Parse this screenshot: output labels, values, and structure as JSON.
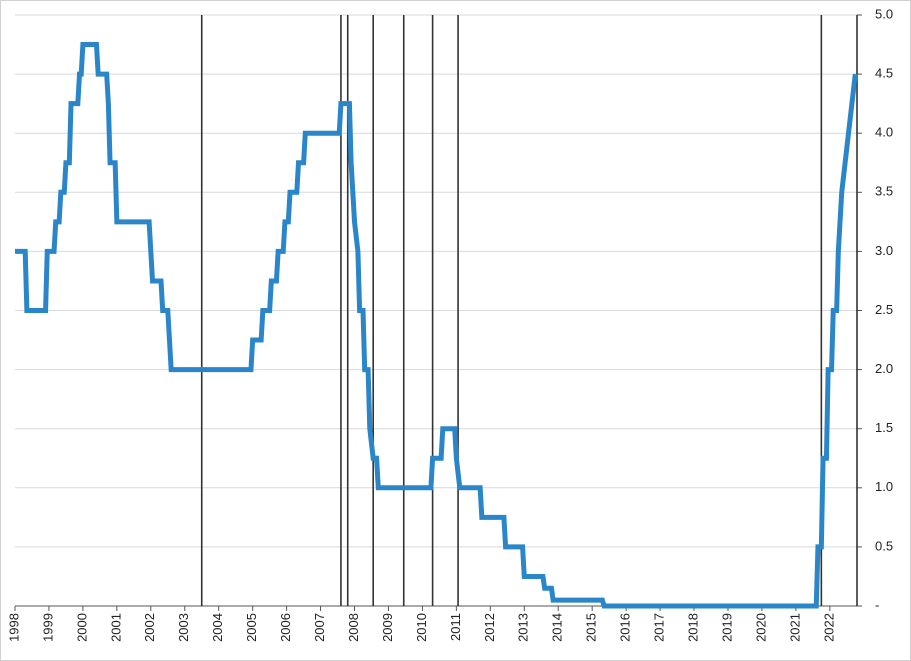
{
  "chart_data": {
    "type": "line",
    "x": [
      1998.0,
      1998.3,
      1998.35,
      1998.9,
      1998.95,
      1999.15,
      1999.2,
      1999.3,
      1999.35,
      1999.45,
      1999.5,
      1999.6,
      1999.65,
      1999.85,
      1999.9,
      1999.95,
      2000.0,
      2000.4,
      2000.45,
      2000.7,
      2000.75,
      2000.8,
      2000.95,
      2001.0,
      2001.95,
      2002.05,
      2002.3,
      2002.35,
      2002.5,
      2002.6,
      2004.95,
      2005.0,
      2005.25,
      2005.3,
      2005.5,
      2005.55,
      2005.7,
      2005.75,
      2005.9,
      2005.95,
      2006.05,
      2006.1,
      2006.3,
      2006.35,
      2006.5,
      2006.55,
      2007.55,
      2007.6,
      2007.85,
      2007.9,
      2008.0,
      2008.1,
      2008.15,
      2008.25,
      2008.3,
      2008.4,
      2008.45,
      2008.55,
      2008.65,
      2008.7,
      2010.25,
      2010.3,
      2010.55,
      2010.6,
      2010.95,
      2011.0,
      2011.1,
      2011.7,
      2011.75,
      2012.4,
      2012.45,
      2012.95,
      2013.0,
      2013.55,
      2013.6,
      2013.8,
      2013.85,
      2015.3,
      2015.35,
      2021.6,
      2021.65,
      2021.75,
      2021.8,
      2021.9,
      2021.95,
      2022.05,
      2022.1,
      2022.2,
      2022.25,
      2022.3,
      2022.35,
      2022.45,
      2022.55,
      2022.65,
      2022.75
    ],
    "values": [
      3.0,
      3.0,
      2.5,
      2.5,
      3.0,
      3.0,
      3.25,
      3.25,
      3.5,
      3.5,
      3.75,
      3.75,
      4.25,
      4.25,
      4.5,
      4.5,
      4.75,
      4.75,
      4.5,
      4.5,
      4.25,
      3.75,
      3.75,
      3.25,
      3.25,
      2.75,
      2.75,
      2.5,
      2.5,
      2.0,
      2.0,
      2.25,
      2.25,
      2.5,
      2.5,
      2.75,
      2.75,
      3.0,
      3.0,
      3.25,
      3.25,
      3.5,
      3.5,
      3.75,
      3.75,
      4.0,
      4.0,
      4.25,
      4.25,
      3.75,
      3.25,
      3.0,
      2.5,
      2.5,
      2.0,
      2.0,
      1.5,
      1.25,
      1.25,
      1.0,
      1.0,
      1.25,
      1.25,
      1.5,
      1.5,
      1.25,
      1.0,
      1.0,
      0.75,
      0.75,
      0.5,
      0.5,
      0.25,
      0.25,
      0.15,
      0.15,
      0.05,
      0.05,
      0.0,
      0.0,
      0.5,
      0.5,
      1.25,
      1.25,
      2.0,
      2.0,
      2.5,
      2.5,
      3.0,
      3.25,
      3.5,
      3.75,
      4.0,
      4.25,
      4.5
    ],
    "color": "#2a86c8",
    "vlines": [
      2003.5,
      2007.6,
      2007.8,
      2008.55,
      2009.45,
      2010.3,
      2011.05,
      2021.75,
      2022.8
    ],
    "vline_color": "#333333",
    "xlim": [
      1998,
      2022.8
    ],
    "xticks": [
      1998,
      1999,
      2000,
      2001,
      2002,
      2003,
      2004,
      2005,
      2006,
      2007,
      2008,
      2009,
      2010,
      2011,
      2012,
      2013,
      2014,
      2015,
      2016,
      2017,
      2018,
      2019,
      2020,
      2021,
      2022
    ],
    "ylim": [
      0,
      5
    ],
    "yticks": [
      {
        "value": 0,
        "label": "-"
      },
      0.5,
      {
        "value": 1,
        "label": "1.0"
      },
      1.5,
      {
        "value": 2,
        "label": "2.0"
      },
      2.5,
      {
        "value": 3,
        "label": "3.0"
      },
      3.5,
      {
        "value": 4,
        "label": "4.0"
      },
      4.5,
      {
        "value": 5,
        "label": "5.0"
      }
    ],
    "grid": true,
    "y_axis_side": "right"
  }
}
